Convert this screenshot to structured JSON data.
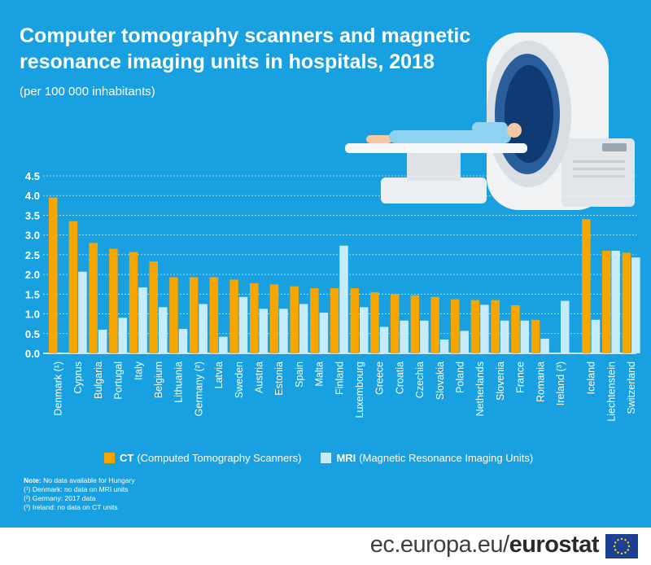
{
  "title": "Computer tomography scanners and magnetic resonance imaging units in hospitals, 2018",
  "subtitle": "(per 100 000 inhabitants)",
  "colors": {
    "background": "#19a0e0",
    "ct": "#f7a600",
    "mri": "#c6ebfa"
  },
  "chart_data": {
    "type": "bar",
    "categories": [
      "Denmark (¹)",
      "Cyprus",
      "Bulgaria",
      "Portugal",
      "Italy",
      "Belgium",
      "Lithuania",
      "Germany (²)",
      "Latvia",
      "Sweden",
      "Austria",
      "Estonia",
      "Spain",
      "Malta",
      "Finland",
      "Luxembourg",
      "Greece",
      "Croatia",
      "Czechia",
      "Slovakia",
      "Poland",
      "Netherlands",
      "Slovenia",
      "France",
      "Romania",
      "Ireland (³)",
      "Iceland",
      "Liechtenstein",
      "Switzerland"
    ],
    "series": [
      {
        "name": "CT",
        "values": [
          3.95,
          3.35,
          2.8,
          2.65,
          2.57,
          2.33,
          1.93,
          1.93,
          1.93,
          1.87,
          1.78,
          1.75,
          1.7,
          1.65,
          1.65,
          1.65,
          1.55,
          1.5,
          1.47,
          1.43,
          1.37,
          1.35,
          1.35,
          1.22,
          0.85,
          null,
          3.4,
          2.6,
          2.55
        ]
      },
      {
        "name": "MRI",
        "values": [
          null,
          2.07,
          0.6,
          0.9,
          1.67,
          1.17,
          0.62,
          1.25,
          0.42,
          1.43,
          1.13,
          1.13,
          1.25,
          1.03,
          2.73,
          1.17,
          0.67,
          0.83,
          0.83,
          0.35,
          0.57,
          1.23,
          0.83,
          0.83,
          0.37,
          1.33,
          0.85,
          2.6,
          2.43
        ]
      }
    ],
    "yticks": [
      "0.0",
      "0.5",
      "1.0",
      "1.5",
      "2.0",
      "2.5",
      "3.0",
      "3.5",
      "4.0",
      "4.5"
    ],
    "ylim": [
      0,
      4.5
    ],
    "grid": true,
    "legend_position": "bottom"
  },
  "legend": {
    "ct_key": "CT",
    "ct_desc": "(Computed Tomography Scanners)",
    "mri_key": "MRI",
    "mri_desc": "(Magnetic Resonance Imaging Units)"
  },
  "notes": {
    "label": "Note:",
    "line0": "No data available for Hungary",
    "line1": "(¹) Denmark: no data on MRI units",
    "line2": "(²) Germany: 2017 data",
    "line3": "(³) Ireland: no data on CT units"
  },
  "footer": {
    "site": "ec.europa.eu/",
    "brand": "eurostat"
  }
}
